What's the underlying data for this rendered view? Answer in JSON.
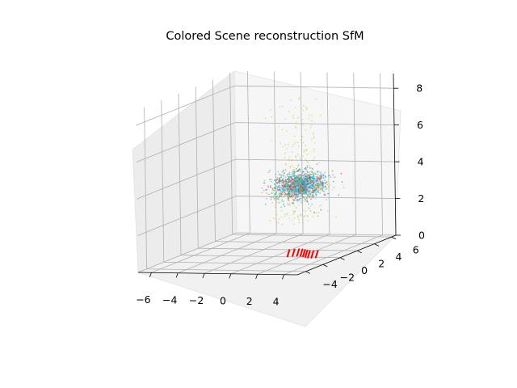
{
  "chart_data": {
    "type": "scatter",
    "projection": "3d",
    "title": "Colored Scene reconstruction SfM",
    "axes": {
      "x": {
        "label": "",
        "ticks": [
          -6,
          -4,
          -2,
          0,
          2,
          4
        ],
        "tick_labels": [
          "−6",
          "−4",
          "−2",
          "0",
          "2",
          "4"
        ],
        "range": [
          -7,
          5
        ]
      },
      "y": {
        "label": "",
        "ticks": [
          -4,
          -2,
          0,
          2,
          4,
          6
        ],
        "tick_labels": [
          "−4",
          "−2",
          "0",
          "2",
          "4",
          "6"
        ],
        "range": [
          -5,
          6.5
        ]
      },
      "z": {
        "label": "",
        "ticks": [
          0,
          2,
          4,
          6,
          8
        ],
        "tick_labels": [
          "0",
          "2",
          "4",
          "6",
          "8"
        ],
        "range": [
          0,
          8.8
        ]
      }
    },
    "grid": true,
    "series": [
      {
        "name": "scene points",
        "kind": "point-cloud",
        "palette": [
          "#1f77b4",
          "#2ca02c",
          "#d62728",
          "#9467bd",
          "#e377c2",
          "#ff7f0e",
          "#17becf"
        ],
        "center": {
          "x": 0.3,
          "y": 2.6,
          "z": 3.4
        }
      },
      {
        "name": "outlier points",
        "kind": "point-cloud",
        "color": "#bcbd22",
        "z_range": [
          1.5,
          8
        ]
      },
      {
        "name": "camera poses",
        "kind": "arrows",
        "color": "#ff0000",
        "count": 9,
        "z": 0.1
      }
    ]
  }
}
